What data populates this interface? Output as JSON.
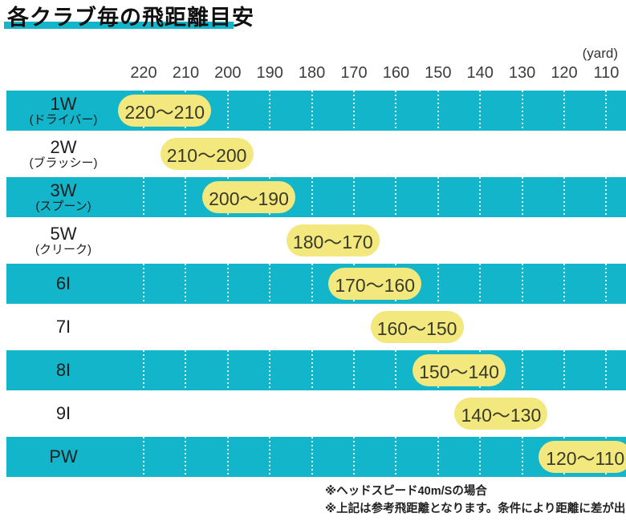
{
  "title": "各クラブ毎の飛距離目安",
  "unit_label": "(yard)",
  "colors": {
    "accent_cyan": "#12b5c9",
    "pill_yellow": "#f2e87d"
  },
  "chart_data": {
    "type": "bar",
    "title": "各クラブ毎の飛距離目安",
    "unit": "yard",
    "axis_ticks": [
      220,
      210,
      200,
      190,
      180,
      170,
      160,
      150,
      140,
      130,
      120,
      110
    ],
    "axis_orientation": "horizontal-reversed",
    "rows": [
      {
        "club": "1W",
        "club_sub": "(ドライバー)",
        "range_label": "220〜210",
        "from": 220,
        "to": 210
      },
      {
        "club": "2W",
        "club_sub": "(ブラッシー)",
        "range_label": "210〜200",
        "from": 210,
        "to": 200
      },
      {
        "club": "3W",
        "club_sub": "(スプーン)",
        "range_label": "200〜190",
        "from": 200,
        "to": 190
      },
      {
        "club": "5W",
        "club_sub": "(クリーク)",
        "range_label": "180〜170",
        "from": 180,
        "to": 170
      },
      {
        "club": "6I",
        "club_sub": "",
        "range_label": "170〜160",
        "from": 170,
        "to": 160
      },
      {
        "club": "7I",
        "club_sub": "",
        "range_label": "160〜150",
        "from": 160,
        "to": 150
      },
      {
        "club": "8I",
        "club_sub": "",
        "range_label": "150〜140",
        "from": 150,
        "to": 140
      },
      {
        "club": "9I",
        "club_sub": "",
        "range_label": "140〜130",
        "from": 140,
        "to": 130
      },
      {
        "club": "PW",
        "club_sub": "",
        "range_label": "120〜110",
        "from": 120,
        "to": 110
      }
    ],
    "notes": [
      "※ヘッドスピード40m/Sの場合",
      "※上記は参考飛距離となります。条件により距離に差が出ます。"
    ]
  }
}
